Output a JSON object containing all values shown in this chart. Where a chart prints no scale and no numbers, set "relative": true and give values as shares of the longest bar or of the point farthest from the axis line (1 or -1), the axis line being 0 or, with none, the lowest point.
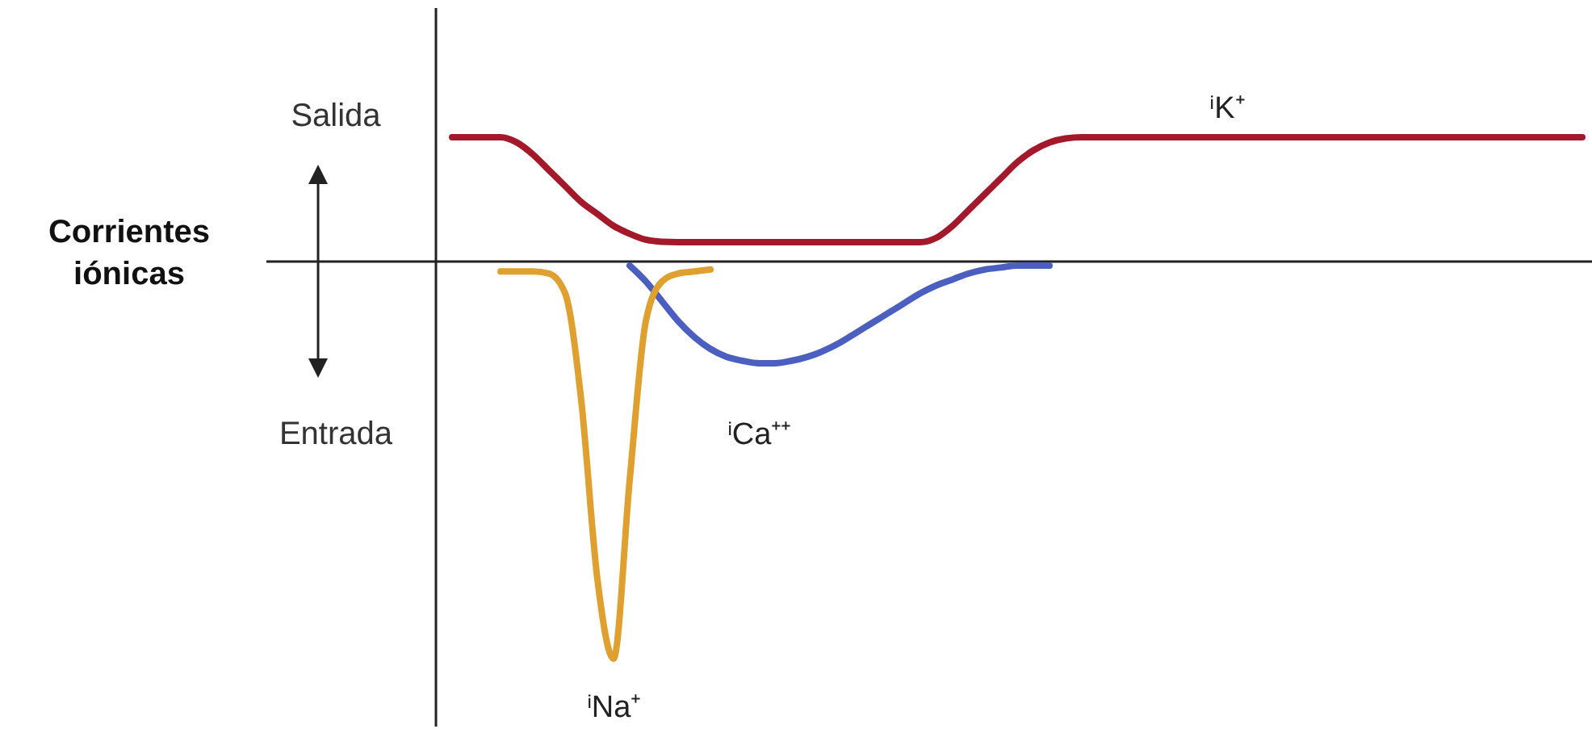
{
  "chart_data": {
    "type": "line",
    "relative": true,
    "annotations": [
      "Salida",
      "Corrientes iónicas",
      "Entrada"
    ],
    "legend": false,
    "marker": "none",
    "line_style": "solid",
    "categories": [
      null,
      null,
      null,
      null,
      null,
      null,
      null,
      null,
      null,
      null,
      null,
      null,
      null,
      null,
      null,
      null,
      null,
      null,
      null,
      null,
      null,
      null,
      null,
      null,
      null,
      null,
      null,
      null,
      null,
      null,
      null,
      null,
      null,
      null,
      null,
      null,
      null,
      null,
      null,
      null,
      null,
      null,
      null,
      null,
      null,
      null,
      null,
      null,
      null,
      null,
      null,
      null,
      null,
      null,
      null,
      null,
      null,
      null,
      null,
      null,
      null,
      null,
      null,
      null,
      null,
      null,
      null,
      null,
      null,
      null,
      null
    ],
    "series": [
      {
        "name": "ⁱK⁺",
        "color": "#a3192b",
        "values": [
          0.313,
          0.313,
          0.313,
          0.313,
          0.3,
          0.27,
          0.23,
          0.19,
          0.15,
          0.12,
          0.09,
          0.07,
          0.055,
          0.05,
          0.049,
          0.049,
          0.049,
          0.049,
          0.049,
          0.049,
          0.049,
          0.049,
          0.049,
          0.049,
          0.049,
          0.049,
          0.049,
          0.049,
          0.049,
          0.049,
          0.06,
          0.09,
          0.13,
          0.17,
          0.21,
          0.25,
          0.28,
          0.3,
          0.31,
          0.313,
          0.313,
          0.313,
          0.313,
          0.313,
          0.313,
          0.313,
          0.313,
          0.313,
          0.313,
          0.313,
          0.313,
          0.313,
          0.313,
          0.313,
          0.313,
          0.313,
          0.313,
          0.313,
          0.313,
          0.313,
          0.313,
          0.313,
          0.313,
          0.313,
          0.313,
          0.313,
          0.313,
          0.313,
          0.313,
          0.313,
          0.313
        ]
      },
      {
        "name": "ⁱCa⁺⁺",
        "color": "#4a5fbf",
        "values": [
          null,
          null,
          null,
          null,
          null,
          null,
          null,
          null,
          null,
          null,
          null,
          -0.01,
          -0.05,
          -0.1,
          -0.15,
          -0.19,
          -0.22,
          -0.24,
          -0.25,
          -0.256,
          -0.256,
          -0.25,
          -0.24,
          -0.225,
          -0.205,
          -0.18,
          -0.155,
          -0.13,
          -0.105,
          -0.08,
          -0.06,
          -0.045,
          -0.03,
          -0.02,
          -0.015,
          -0.01,
          -0.01,
          -0.01,
          null,
          null,
          null,
          null,
          null,
          null,
          null,
          null,
          null,
          null,
          null,
          null,
          null,
          null,
          null,
          null,
          null,
          null,
          null,
          null,
          null,
          null,
          null,
          null,
          null,
          null,
          null,
          null,
          null,
          null,
          null,
          null,
          null
        ]
      },
      {
        "name": "ⁱNa⁺",
        "color": "#e0a030",
        "values": [
          null,
          null,
          null,
          -0.025,
          -0.025,
          -0.025,
          -0.03,
          -0.08,
          -0.35,
          -0.8,
          -1,
          -0.55,
          -0.15,
          -0.05,
          -0.03,
          -0.025,
          -0.02,
          null,
          null,
          null,
          null,
          null,
          null,
          null,
          null,
          null,
          null,
          null,
          null,
          null,
          null,
          null,
          null,
          null,
          null,
          null,
          null,
          null,
          null,
          null,
          null,
          null,
          null,
          null,
          null,
          null,
          null,
          null,
          null,
          null,
          null,
          null,
          null,
          null,
          null,
          null,
          null,
          null,
          null,
          null,
          null,
          null,
          null,
          null,
          null,
          null,
          null,
          null,
          null,
          null,
          null
        ]
      }
    ]
  }
}
